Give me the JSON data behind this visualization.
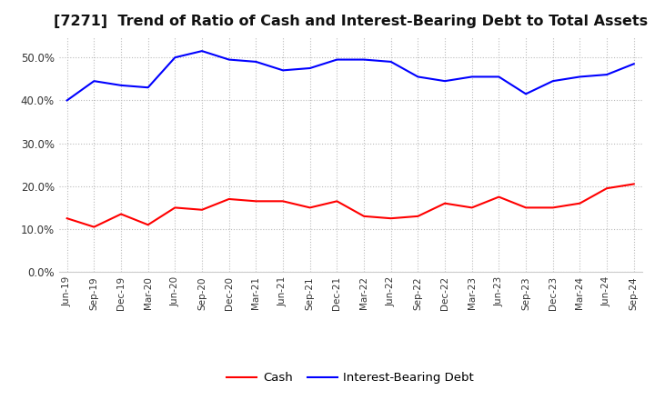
{
  "title": "[7271]  Trend of Ratio of Cash and Interest-Bearing Debt to Total Assets",
  "x_labels": [
    "Jun-19",
    "Sep-19",
    "Dec-19",
    "Mar-20",
    "Jun-20",
    "Sep-20",
    "Dec-20",
    "Mar-21",
    "Jun-21",
    "Sep-21",
    "Dec-21",
    "Mar-22",
    "Jun-22",
    "Sep-22",
    "Dec-22",
    "Mar-23",
    "Jun-23",
    "Sep-23",
    "Dec-23",
    "Mar-24",
    "Jun-24",
    "Sep-24"
  ],
  "cash": [
    12.5,
    10.5,
    13.5,
    11.0,
    15.0,
    14.5,
    17.0,
    16.5,
    16.5,
    15.0,
    16.5,
    13.0,
    12.5,
    13.0,
    16.0,
    15.0,
    17.5,
    15.0,
    15.0,
    16.0,
    19.5,
    20.5
  ],
  "debt": [
    40.0,
    44.5,
    43.5,
    43.0,
    50.0,
    51.5,
    49.5,
    49.0,
    47.0,
    47.5,
    49.5,
    49.5,
    49.0,
    45.5,
    44.5,
    45.5,
    45.5,
    41.5,
    44.5,
    45.5,
    46.0,
    48.5
  ],
  "cash_color": "#ff0000",
  "debt_color": "#0000ff",
  "background_color": "#ffffff",
  "plot_bg_color": "#ffffff",
  "grid_color": "#bbbbbb",
  "title_fontsize": 11.5,
  "ylim": [
    0,
    55
  ],
  "yticks": [
    0.0,
    10.0,
    20.0,
    30.0,
    40.0,
    50.0
  ],
  "legend_cash": "Cash",
  "legend_debt": "Interest-Bearing Debt",
  "line_width": 1.5
}
